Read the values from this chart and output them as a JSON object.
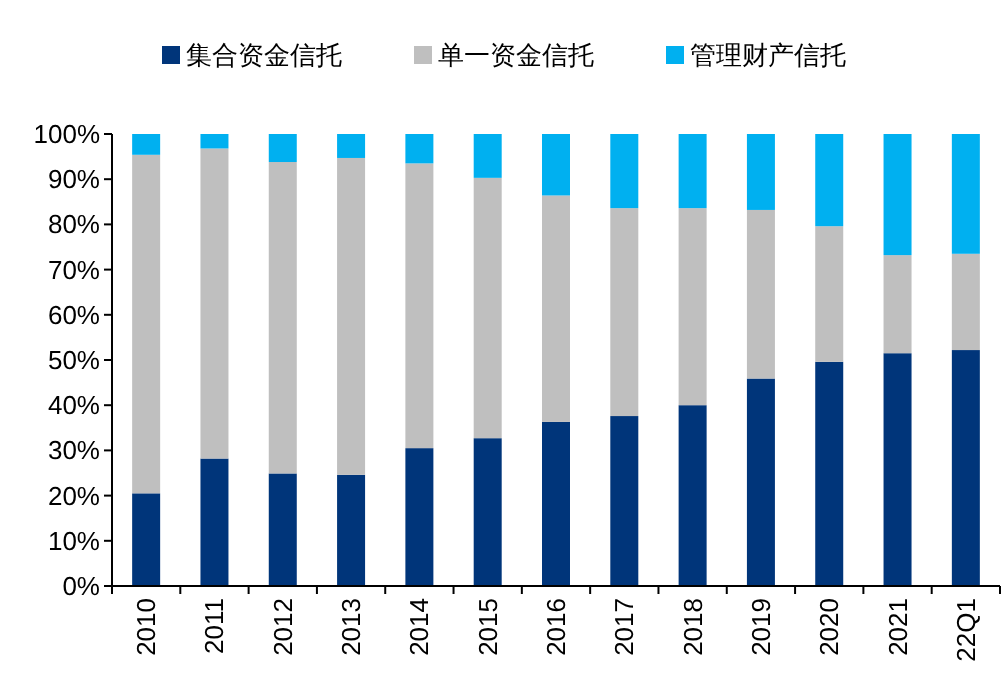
{
  "chart_data": {
    "type": "bar",
    "stacked": true,
    "legend": "top",
    "grid": false,
    "categories": [
      "2010",
      "2011",
      "2012",
      "2013",
      "2014",
      "2015",
      "2016",
      "2017",
      "2018",
      "2019",
      "2020",
      "2021",
      "22Q1"
    ],
    "series": [
      {
        "name": "集合资金信托",
        "color": "#00357a",
        "values": [
          20.5,
          28.2,
          24.9,
          24.6,
          30.5,
          32.7,
          36.3,
          37.6,
          40.0,
          45.9,
          49.6,
          51.5,
          52.2
        ]
      },
      {
        "name": "单一资金信托",
        "color": "#bfbfbf",
        "values": [
          74.9,
          68.6,
          68.9,
          70.1,
          63.0,
          57.6,
          50.1,
          46.0,
          43.6,
          37.3,
          30.0,
          21.7,
          21.3
        ]
      },
      {
        "name": "管理财产信托",
        "color": "#00b0f0",
        "values": [
          4.6,
          3.2,
          6.2,
          5.3,
          6.5,
          9.7,
          13.6,
          16.4,
          16.4,
          16.8,
          20.4,
          26.8,
          26.5
        ]
      }
    ],
    "ylim": [
      0,
      100
    ],
    "yticks": [
      {
        "value": 0,
        "label": "0%"
      },
      {
        "value": 10,
        "label": "10%"
      },
      {
        "value": 20,
        "label": "20%"
      },
      {
        "value": 30,
        "label": "30%"
      },
      {
        "value": 40,
        "label": "40%"
      },
      {
        "value": 50,
        "label": "50%"
      },
      {
        "value": 60,
        "label": "60%"
      },
      {
        "value": 70,
        "label": "70%"
      },
      {
        "value": 80,
        "label": "80%"
      },
      {
        "value": 90,
        "label": "90%"
      },
      {
        "value": 100,
        "label": "100%"
      }
    ]
  }
}
